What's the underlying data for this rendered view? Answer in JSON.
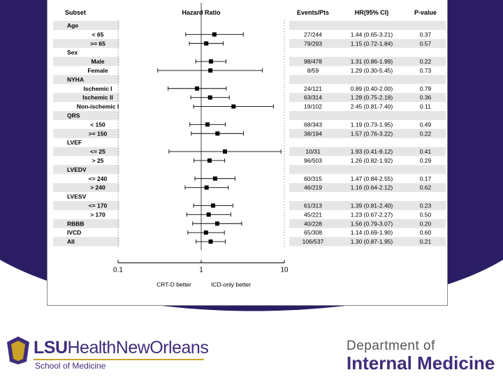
{
  "theme": {
    "purple": "#2a1d64",
    "gold": "#c9a227",
    "ink": "#000000",
    "shade": "#e6e6e6"
  },
  "footer": {
    "logo_lsu": "LSU",
    "logo_rest": "HealthNewOrleans",
    "logo_sub": "School of Medicine",
    "dept_line1": "Department of",
    "dept_line2": "Internal Medicine"
  },
  "chart_data": {
    "type": "forest",
    "x_scale": "log",
    "xlim": [
      0.1,
      10
    ],
    "x_ticks": [
      "0.1",
      "1",
      "10"
    ],
    "reference_line": 1,
    "headers": {
      "subset": "Subset",
      "plot": "Hazard Ratio",
      "events": "Events/Pts",
      "hr": "HR(95% CI)",
      "p": "P-value"
    },
    "footnote_left": "CRT-D better",
    "footnote_right": "ICD-only better",
    "rows": [
      {
        "label": "Age",
        "group": true
      },
      {
        "label": "< 65",
        "hr": 1.44,
        "lo": 0.65,
        "hi": 3.21,
        "events": "27/244",
        "ci": "1.44 (0.65-3.21)",
        "p": "0.37"
      },
      {
        "label": ">= 65",
        "hr": 1.15,
        "lo": 0.72,
        "hi": 1.84,
        "events": "79/293",
        "ci": "1.15 (0.72-1.84)",
        "p": "0.57"
      },
      {
        "label": "Sex",
        "group": true
      },
      {
        "label": "Male",
        "hr": 1.31,
        "lo": 0.86,
        "hi": 1.99,
        "events": "98/478",
        "ci": "1.31 (0.86-1.99)",
        "p": "0.22"
      },
      {
        "label": "Female",
        "hr": 1.29,
        "lo": 0.3,
        "hi": 5.45,
        "events": "8/59",
        "ci": "1.29 (0.30-5.45)",
        "p": "0.73"
      },
      {
        "label": "NYHA",
        "group": true
      },
      {
        "label": "Ischemic I",
        "hr": 0.89,
        "lo": 0.4,
        "hi": 2.0,
        "events": "24/121",
        "ci": "0.89 (0.40-2.00)",
        "p": "0.79"
      },
      {
        "label": "Ischemic II",
        "hr": 1.28,
        "lo": 0.75,
        "hi": 2.18,
        "events": "63/314",
        "ci": "1.28 (0.75-2.18)",
        "p": "0.36"
      },
      {
        "label": "Non-ischemic I",
        "hr": 2.45,
        "lo": 0.81,
        "hi": 7.4,
        "events": "19/102",
        "ci": "2.45 (0.81-7.40)",
        "p": "0.11"
      },
      {
        "label": "QRS",
        "group": true
      },
      {
        "label": "< 150",
        "hr": 1.19,
        "lo": 0.73,
        "hi": 1.95,
        "events": "68/343",
        "ci": "1.19 (0.73-1.95)",
        "p": "0.49"
      },
      {
        "label": ">= 150",
        "hr": 1.57,
        "lo": 0.76,
        "hi": 3.22,
        "events": "38/194",
        "ci": "1.57 (0.76-3.22)",
        "p": "0.22"
      },
      {
        "label": "LVEF",
        "group": true
      },
      {
        "label": "<= 25",
        "hr": 1.93,
        "lo": 0.41,
        "hi": 9.12,
        "events": "10/31",
        "ci": "1.93 (0.41-9.12)",
        "p": "0.41"
      },
      {
        "label": "> 25",
        "hr": 1.26,
        "lo": 0.82,
        "hi": 1.92,
        "events": "96/503",
        "ci": "1.26 (0.82-1.92)",
        "p": "0.29"
      },
      {
        "label": "LVEDV",
        "group": true
      },
      {
        "label": "<= 240",
        "hr": 1.47,
        "lo": 0.84,
        "hi": 2.55,
        "events": "60/315",
        "ci": "1.47 (0.84-2.55)",
        "p": "0.17"
      },
      {
        "label": "> 240",
        "hr": 1.16,
        "lo": 0.64,
        "hi": 2.12,
        "events": "46/219",
        "ci": "1.16 (0.64-2.12)",
        "p": "0.62"
      },
      {
        "label": "LVESV",
        "group": true
      },
      {
        "label": "<= 170",
        "hr": 1.39,
        "lo": 0.81,
        "hi": 2.4,
        "events": "61/313",
        "ci": "1.39 (0.81-2.40)",
        "p": "0.23"
      },
      {
        "label": "> 170",
        "hr": 1.23,
        "lo": 0.67,
        "hi": 2.27,
        "events": "45/221",
        "ci": "1.23 (0.67-2.27)",
        "p": "0.50"
      },
      {
        "label": "RBBB",
        "hr": 1.56,
        "lo": 0.79,
        "hi": 3.07,
        "events": "40/228",
        "ci": "1.56 (0.79-3.07)",
        "p": "0.20",
        "bold": true
      },
      {
        "label": "IVCD",
        "hr": 1.14,
        "lo": 0.69,
        "hi": 1.9,
        "events": "65/308",
        "ci": "1.14 (0.69-1.90)",
        "p": "0.60",
        "bold": true
      },
      {
        "label": "All",
        "hr": 1.3,
        "lo": 0.87,
        "hi": 1.95,
        "events": "106/537",
        "ci": "1.30 (0.87-1.95)",
        "p": "0.21",
        "bold": true
      }
    ]
  }
}
